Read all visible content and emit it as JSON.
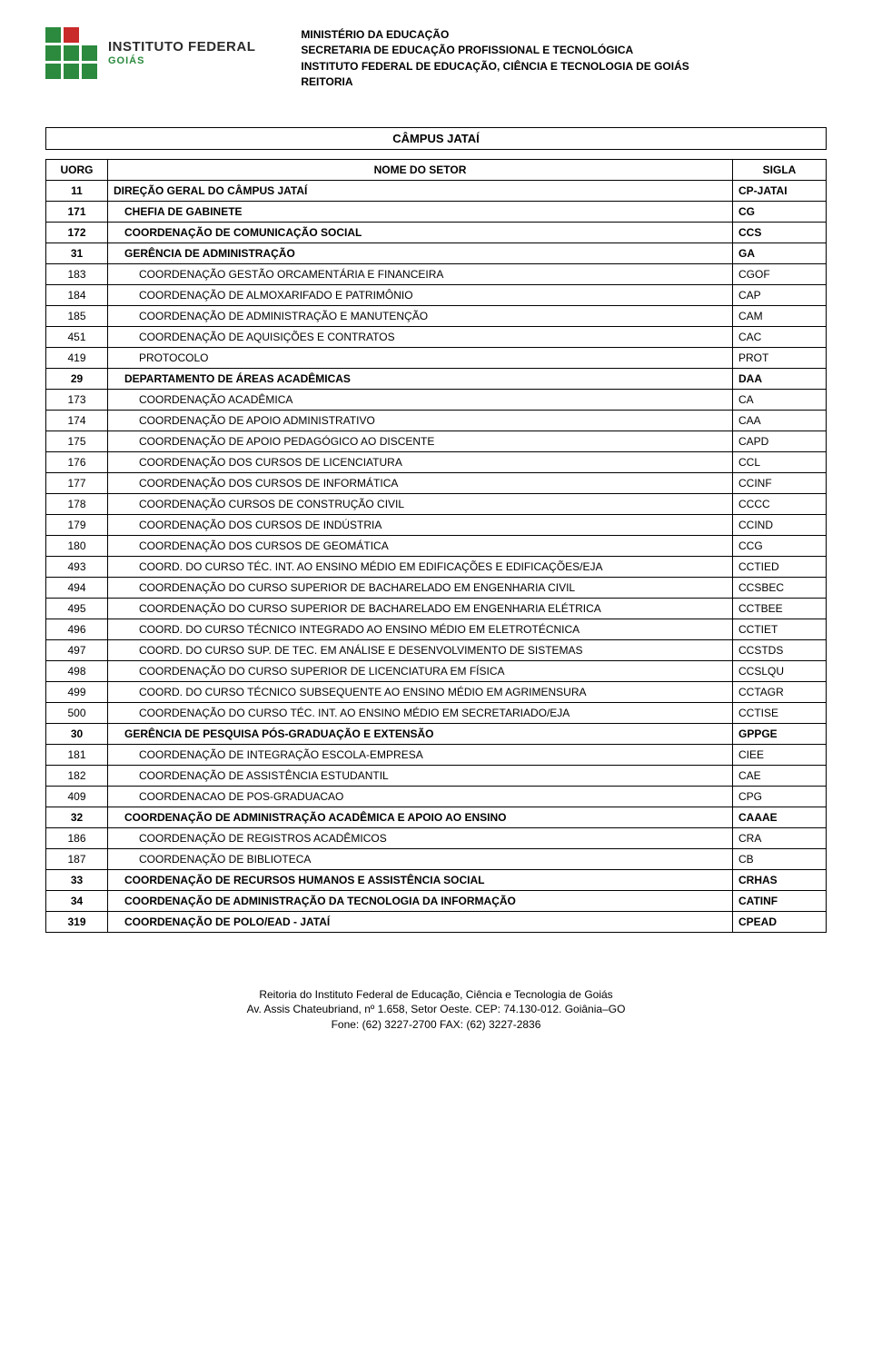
{
  "header": {
    "logo_line1": "INSTITUTO FEDERAL",
    "logo_line2": "GOIÁS",
    "lines": [
      "MINISTÉRIO DA EDUCAÇÃO",
      "SECRETARIA DE EDUCAÇÃO PROFISSIONAL E TECNOLÓGICA",
      "INSTITUTO FEDERAL DE EDUCAÇÃO, CIÊNCIA E TECNOLOGIA DE GOIÁS",
      "REITORIA"
    ]
  },
  "title": "CÂMPUS JATAÍ",
  "columns": [
    "UORG",
    "NOME DO SETOR",
    "SIGLA"
  ],
  "colors": {
    "green": "#2b8a3e",
    "red": "#c92a2a"
  },
  "rows": [
    {
      "uorg": "11",
      "nome": "DIREÇÃO GERAL DO CÂMPUS JATAÍ",
      "sigla": "CP-JATAI",
      "bold": true,
      "indent": 0
    },
    {
      "uorg": "171",
      "nome": "CHEFIA DE GABINETE",
      "sigla": "CG",
      "bold": true,
      "indent": 1
    },
    {
      "uorg": "172",
      "nome": "COORDENAÇÃO DE COMUNICAÇÃO SOCIAL",
      "sigla": "CCS",
      "bold": true,
      "indent": 1
    },
    {
      "uorg": "31",
      "nome": "GERÊNCIA DE ADMINISTRAÇÃO",
      "sigla": "GA",
      "bold": true,
      "indent": 1
    },
    {
      "uorg": "183",
      "nome": "COORDENAÇÃO GESTÃO ORCAMENTÁRIA E FINANCEIRA",
      "sigla": "CGOF",
      "bold": false,
      "indent": 2
    },
    {
      "uorg": "184",
      "nome": "COORDENAÇÃO DE ALMOXARIFADO E PATRIMÔNIO",
      "sigla": "CAP",
      "bold": false,
      "indent": 2
    },
    {
      "uorg": "185",
      "nome": "COORDENAÇÃO DE ADMINISTRAÇÃO E MANUTENÇÃO",
      "sigla": "CAM",
      "bold": false,
      "indent": 2
    },
    {
      "uorg": "451",
      "nome": "COORDENAÇÃO DE AQUISIÇÕES E CONTRATOS",
      "sigla": "CAC",
      "bold": false,
      "indent": 2
    },
    {
      "uorg": "419",
      "nome": "PROTOCOLO",
      "sigla": "PROT",
      "bold": false,
      "indent": 2
    },
    {
      "uorg": "29",
      "nome": "DEPARTAMENTO DE ÁREAS ACADÊMICAS",
      "sigla": "DAA",
      "bold": true,
      "indent": 1
    },
    {
      "uorg": "173",
      "nome": "COORDENAÇÃO ACADÊMICA",
      "sigla": "CA",
      "bold": false,
      "indent": 2
    },
    {
      "uorg": "174",
      "nome": "COORDENAÇÃO DE APOIO ADMINISTRATIVO",
      "sigla": "CAA",
      "bold": false,
      "indent": 2
    },
    {
      "uorg": "175",
      "nome": "COORDENAÇÃO DE APOIO PEDAGÓGICO AO DISCENTE",
      "sigla": "CAPD",
      "bold": false,
      "indent": 2
    },
    {
      "uorg": "176",
      "nome": "COORDENAÇÃO DOS CURSOS DE LICENCIATURA",
      "sigla": "CCL",
      "bold": false,
      "indent": 2
    },
    {
      "uorg": "177",
      "nome": "COORDENAÇÃO DOS CURSOS DE INFORMÁTICA",
      "sigla": "CCINF",
      "bold": false,
      "indent": 2
    },
    {
      "uorg": "178",
      "nome": "COORDENAÇÃO CURSOS DE CONSTRUÇÃO CIVIL",
      "sigla": "CCCC",
      "bold": false,
      "indent": 2
    },
    {
      "uorg": "179",
      "nome": "COORDENAÇÃO DOS CURSOS DE INDÚSTRIA",
      "sigla": "CCIND",
      "bold": false,
      "indent": 2
    },
    {
      "uorg": "180",
      "nome": "COORDENAÇÃO DOS CURSOS DE GEOMÁTICA",
      "sigla": "CCG",
      "bold": false,
      "indent": 2
    },
    {
      "uorg": "493",
      "nome": "COORD. DO CURSO TÉC. INT. AO ENSINO MÉDIO EM EDIFICAÇÕES E EDIFICAÇÕES/EJA",
      "sigla": "CCTIED",
      "bold": false,
      "indent": 2
    },
    {
      "uorg": "494",
      "nome": "COORDENAÇÃO DO CURSO SUPERIOR DE BACHARELADO EM ENGENHARIA CIVIL",
      "sigla": "CCSBEC",
      "bold": false,
      "indent": 2
    },
    {
      "uorg": "495",
      "nome": "COORDENAÇÃO DO CURSO SUPERIOR DE BACHARELADO EM ENGENHARIA ELÉTRICA",
      "sigla": "CCTBEE",
      "bold": false,
      "indent": 2
    },
    {
      "uorg": "496",
      "nome": "COORD. DO CURSO TÉCNICO INTEGRADO AO ENSINO MÉDIO EM ELETROTÉCNICA",
      "sigla": "CCTIET",
      "bold": false,
      "indent": 2
    },
    {
      "uorg": "497",
      "nome": "COORD. DO CURSO SUP. DE TEC. EM ANÁLISE E DESENVOLVIMENTO DE SISTEMAS",
      "sigla": "CCSTDS",
      "bold": false,
      "indent": 2
    },
    {
      "uorg": "498",
      "nome": "COORDENAÇÃO DO CURSO SUPERIOR DE LICENCIATURA EM FÍSICA",
      "sigla": "CCSLQU",
      "bold": false,
      "indent": 2
    },
    {
      "uorg": "499",
      "nome": "COORD. DO CURSO TÉCNICO SUBSEQUENTE AO ENSINO MÉDIO EM AGRIMENSURA",
      "sigla": "CCTAGR",
      "bold": false,
      "indent": 2
    },
    {
      "uorg": "500",
      "nome": "COORDENAÇÃO DO CURSO TÉC. INT. AO ENSINO MÉDIO EM SECRETARIADO/EJA",
      "sigla": "CCTISE",
      "bold": false,
      "indent": 2
    },
    {
      "uorg": "30",
      "nome": "GERÊNCIA DE PESQUISA PÓS-GRADUAÇÃO E EXTENSÃO",
      "sigla": "GPPGE",
      "bold": true,
      "indent": 1
    },
    {
      "uorg": "181",
      "nome": "COORDENAÇÃO DE INTEGRAÇÃO ESCOLA-EMPRESA",
      "sigla": "CIEE",
      "bold": false,
      "indent": 2
    },
    {
      "uorg": "182",
      "nome": "COORDENAÇÃO DE ASSISTÊNCIA ESTUDANTIL",
      "sigla": "CAE",
      "bold": false,
      "indent": 2
    },
    {
      "uorg": "409",
      "nome": "COORDENACAO DE POS-GRADUACAO",
      "sigla": "CPG",
      "bold": false,
      "indent": 2
    },
    {
      "uorg": "32",
      "nome": "COORDENAÇÃO DE ADMINISTRAÇÃO ACADÊMICA E APOIO AO ENSINO",
      "sigla": "CAAAE",
      "bold": true,
      "indent": 1
    },
    {
      "uorg": "186",
      "nome": "COORDENAÇÃO DE REGISTROS ACADÊMICOS",
      "sigla": "CRA",
      "bold": false,
      "indent": 2
    },
    {
      "uorg": "187",
      "nome": "COORDENAÇÃO DE BIBLIOTECA",
      "sigla": "CB",
      "bold": false,
      "indent": 2
    },
    {
      "uorg": "33",
      "nome": "COORDENAÇÃO DE RECURSOS HUMANOS E ASSISTÊNCIA SOCIAL",
      "sigla": "CRHAS",
      "bold": true,
      "indent": 1
    },
    {
      "uorg": "34",
      "nome": "COORDENAÇÃO DE ADMINISTRAÇÃO DA TECNOLOGIA DA INFORMAÇÃO",
      "sigla": "CATINF",
      "bold": true,
      "indent": 1
    },
    {
      "uorg": "319",
      "nome": "COORDENAÇÃO DE POLO/EAD - JATAÍ",
      "sigla": "CPEAD",
      "bold": true,
      "indent": 1
    }
  ],
  "footer": [
    "Reitoria do Instituto Federal de Educação, Ciência e Tecnologia de Goiás",
    "Av. Assis Chateubriand, nº 1.658, Setor Oeste. CEP: 74.130-012. Goiânia–GO",
    "Fone: (62) 3227-2700 FAX: (62) 3227-2836"
  ]
}
